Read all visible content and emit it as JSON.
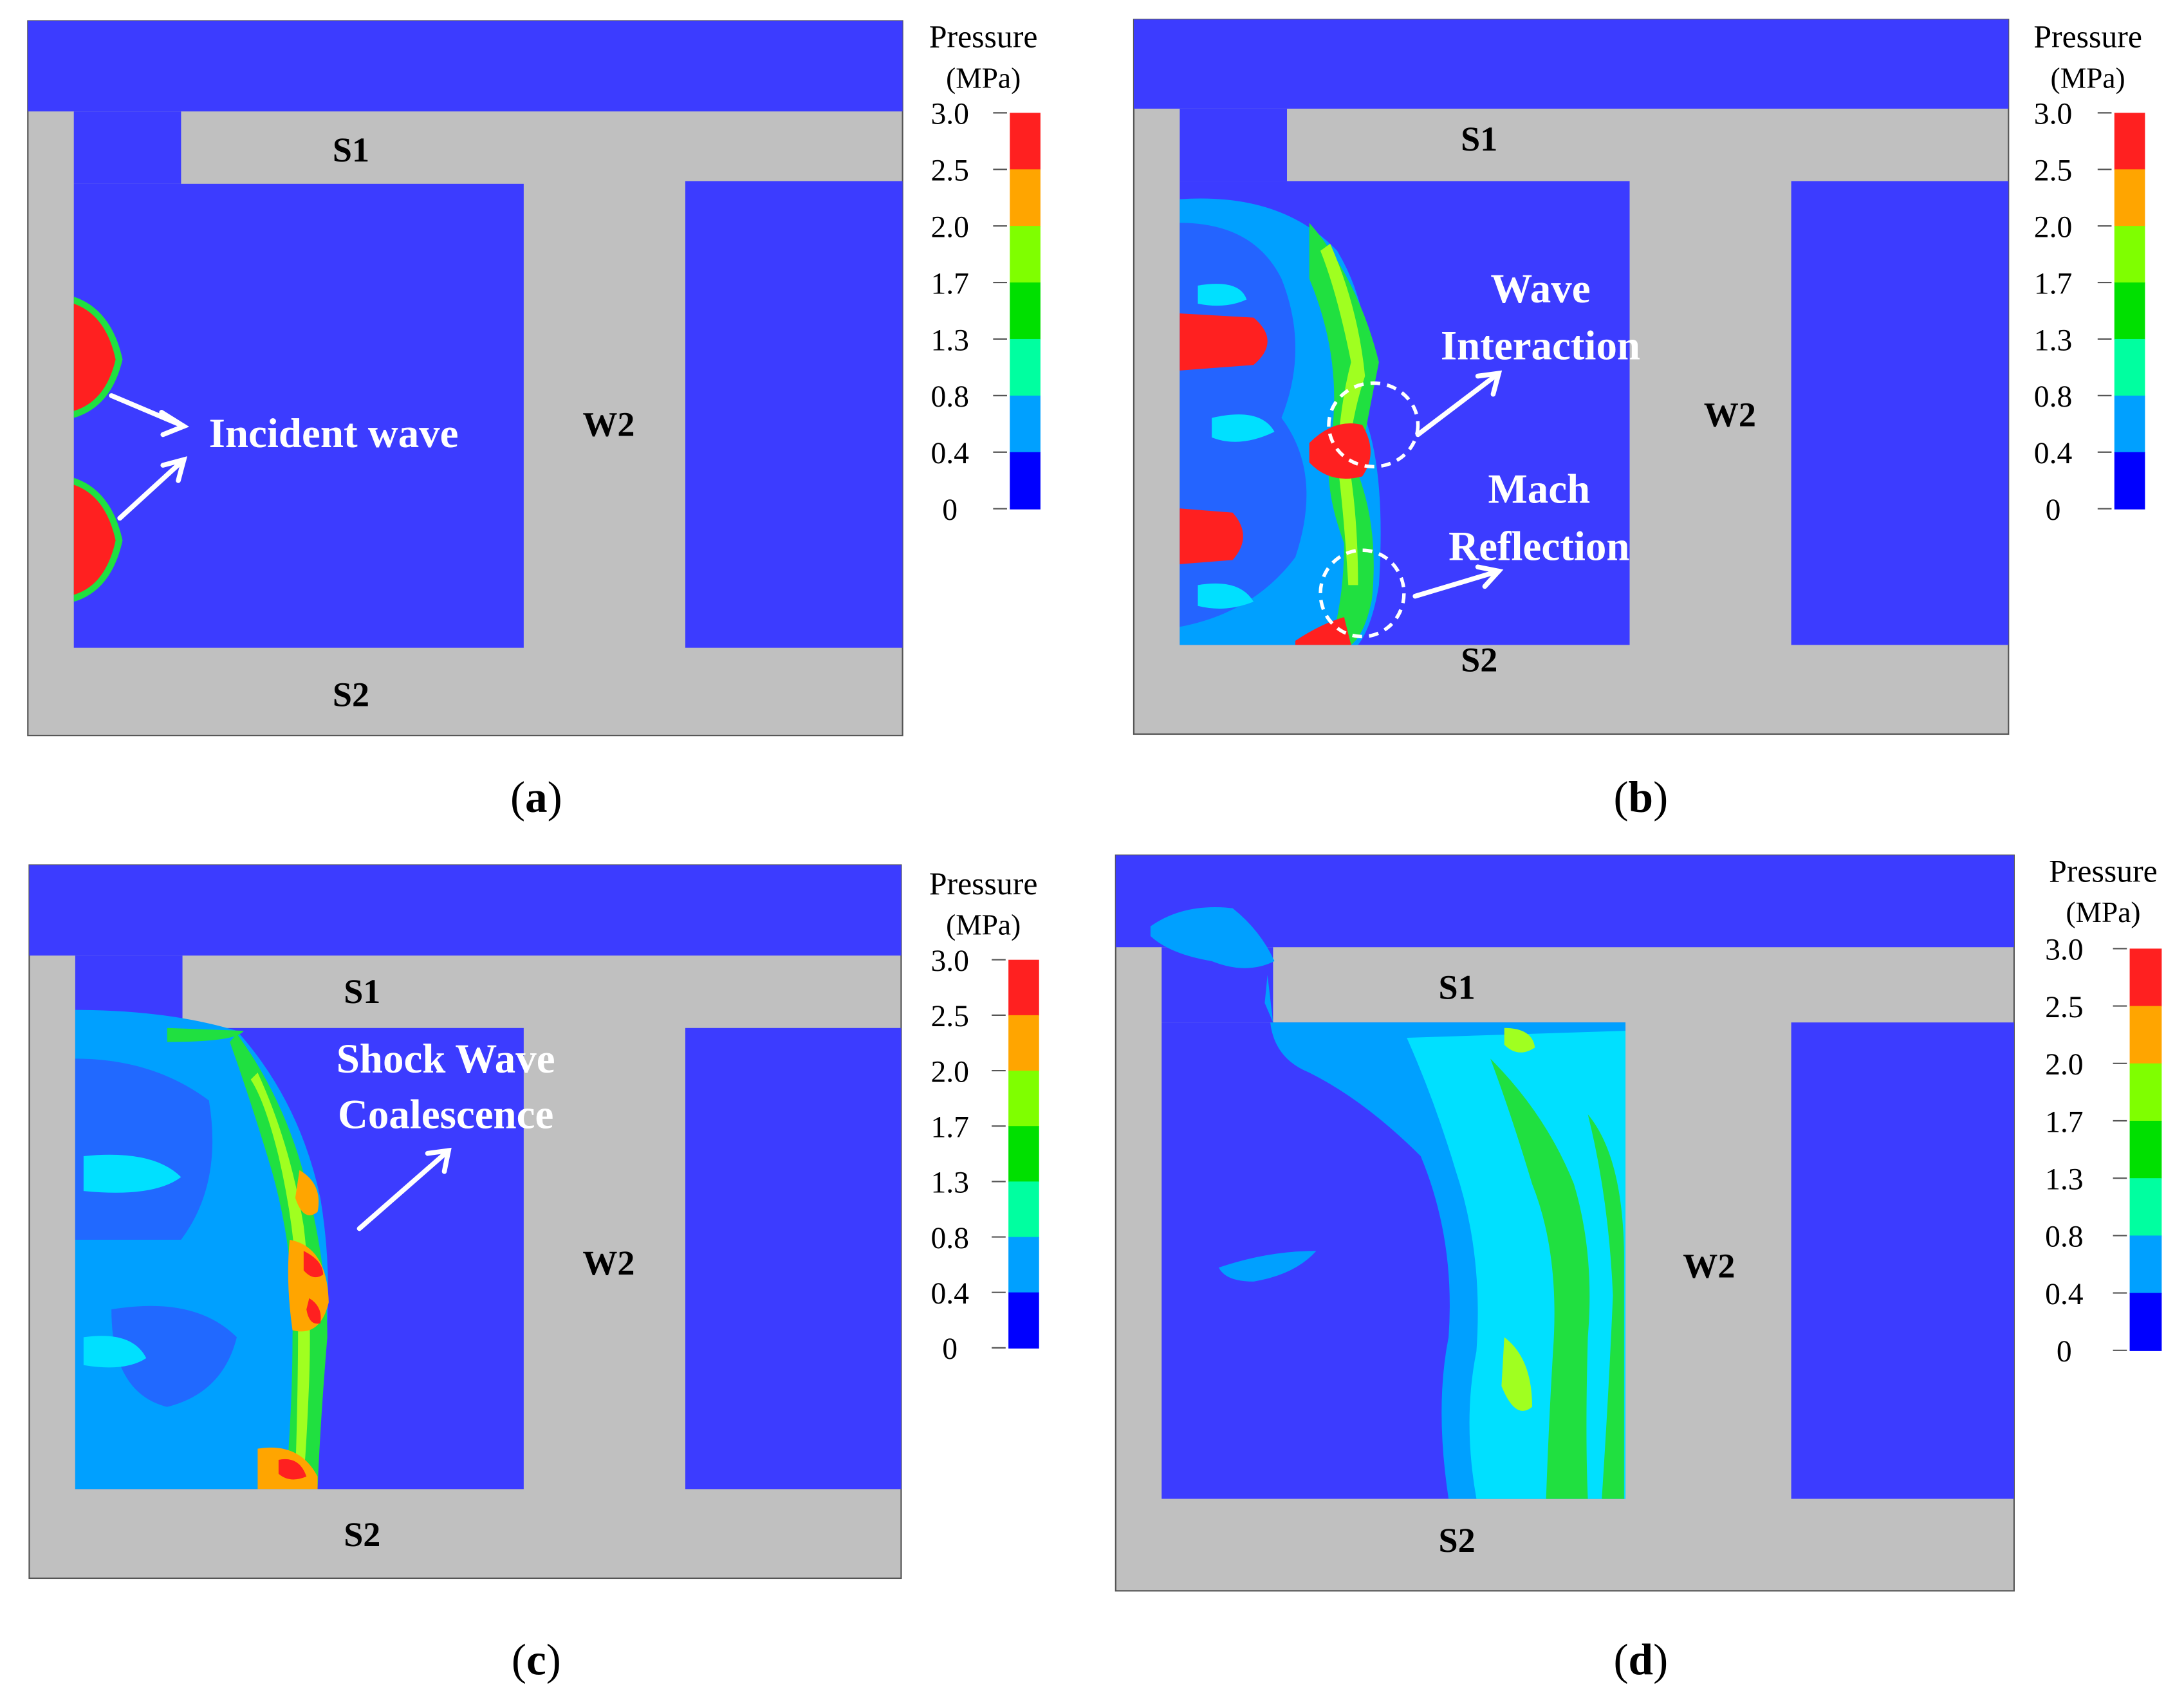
{
  "legend": {
    "title": "Pressure",
    "unit": "(MPa)",
    "ticks": [
      "3.0",
      "2.5",
      "2.0",
      "1.7",
      "1.3",
      "0.8",
      "0.4",
      "0"
    ],
    "colors": [
      "#ff2020",
      "#ffa500",
      "#7fff00",
      "#00e000",
      "#00ffa0",
      "#00a0ff",
      "#0000ff"
    ]
  },
  "colors": {
    "domain": "#3c3cff",
    "wall": "#c0c0c0",
    "annotation": "#ffffff",
    "cyan": "#00e0ff",
    "blue_light": "#00a0ff",
    "green": "#20e040",
    "yellow_green": "#a0ff20",
    "orange": "#ffa500",
    "red": "#ff2020"
  },
  "panels": [
    {
      "caption": "(a)",
      "caption_letter": "a",
      "labels": {
        "s1": "S1",
        "s2": "S2",
        "w2": "W2"
      },
      "annotations": [
        "Incident wave"
      ]
    },
    {
      "caption": "(b)",
      "caption_letter": "b",
      "labels": {
        "s1": "S1",
        "s2": "S2",
        "w2": "W2"
      },
      "annotations": [
        "Wave",
        "Interaction",
        "Mach",
        "Reflection"
      ]
    },
    {
      "caption": "(c)",
      "caption_letter": "c",
      "labels": {
        "s1": "S1",
        "s2": "S2",
        "w2": "W2"
      },
      "annotations": [
        "Shock Wave",
        "Coalescence"
      ]
    },
    {
      "caption": "(d)",
      "caption_letter": "d",
      "labels": {
        "s1": "S1",
        "s2": "S2",
        "w2": "W2"
      },
      "annotations": []
    }
  ]
}
